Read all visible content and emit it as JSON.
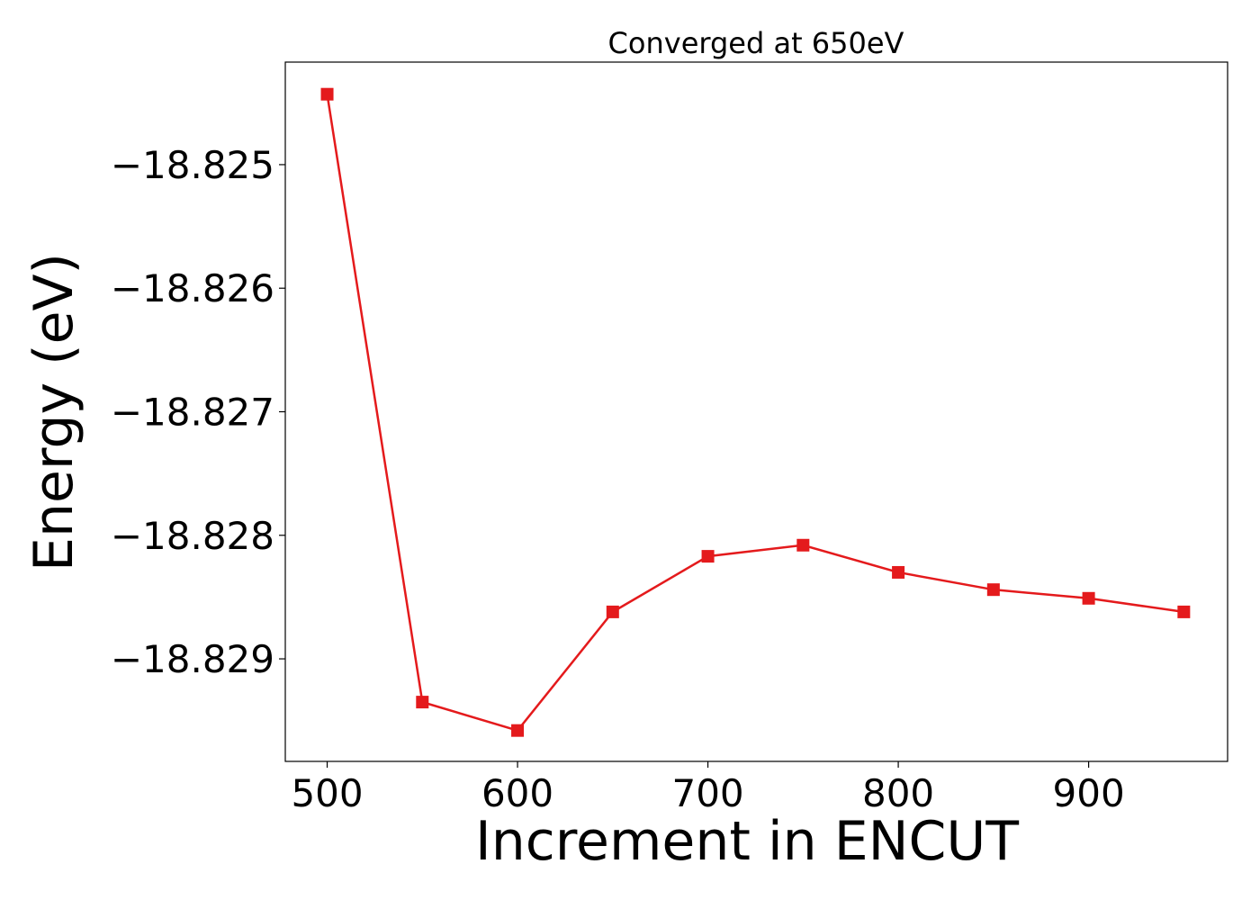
{
  "chart_data": {
    "type": "line",
    "title": "Converged at 650eV",
    "xlabel": "Increment in ENCUT",
    "ylabel": "Energy (eV)",
    "x": [
      500,
      550,
      600,
      650,
      700,
      750,
      800,
      850,
      900,
      950
    ],
    "series": [
      {
        "values": [
          -18.82443,
          -18.82935,
          -18.82958,
          -18.82862,
          -18.82817,
          -18.82808,
          -18.8283,
          -18.82844,
          -18.82851,
          -18.82862
        ],
        "color": "#e41a1c",
        "marker": "square"
      }
    ],
    "xlim": [
      478,
      973
    ],
    "ylim": [
      -18.82983,
      -18.82417
    ],
    "xticks": [
      500,
      600,
      700,
      800,
      900
    ],
    "xtick_labels": [
      "500",
      "600",
      "700",
      "800",
      "900"
    ],
    "yticks": [
      -18.825,
      -18.826,
      -18.827,
      -18.828,
      -18.829
    ],
    "ytick_labels": [
      "−18.825",
      "−18.826",
      "−18.827",
      "−18.828",
      "−18.829"
    ],
    "grid": false,
    "legend": false
  }
}
